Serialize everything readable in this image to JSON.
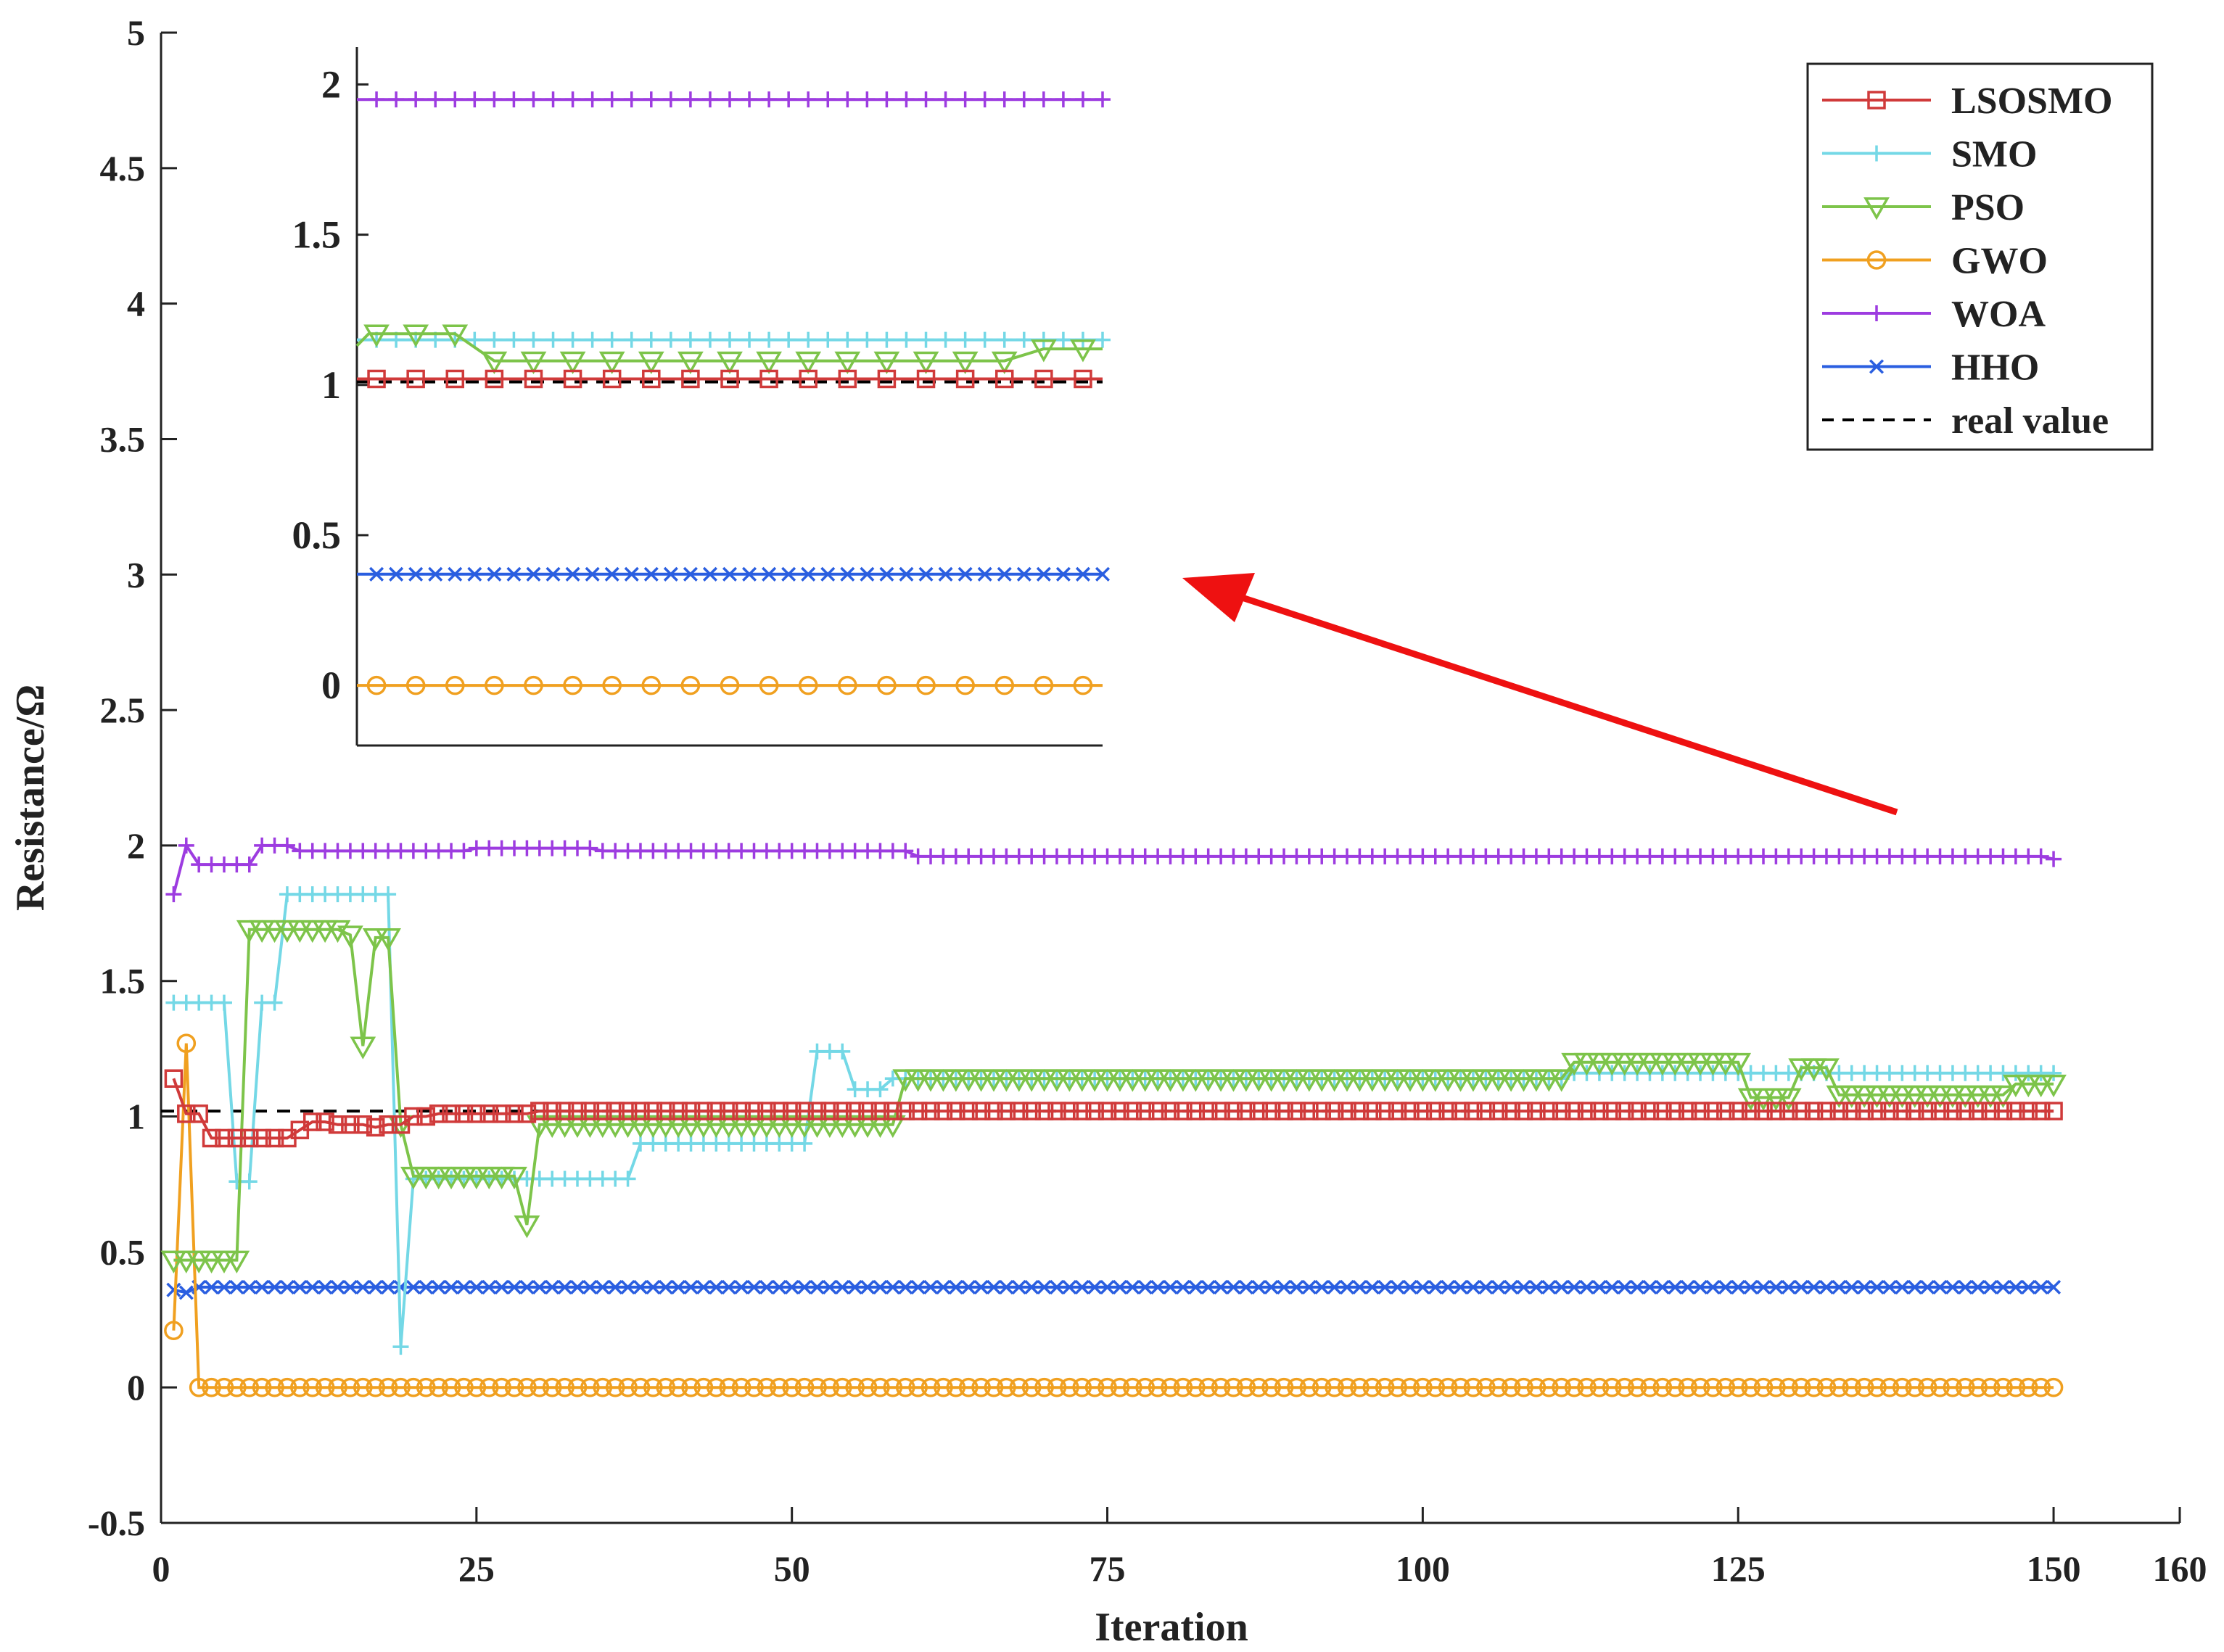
{
  "chart_data": {
    "type": "line",
    "xlabel": "Iteration",
    "ylabel": "Resistance/Ω",
    "xlim": [
      0,
      160
    ],
    "ylim": [
      -0.5,
      5
    ],
    "xticks": [
      "0",
      "25",
      "50",
      "75",
      "100",
      "125",
      "150",
      "160"
    ],
    "yticks": [
      "-0.5",
      "0",
      "0.5",
      "1",
      "1.5",
      "2",
      "2.5",
      "3",
      "3.5",
      "4",
      "4.5",
      "5"
    ],
    "legend_position": "top-right",
    "series": [
      {
        "name": "LSOSMO",
        "color": "#d03a3a",
        "marker": "square",
        "points": [
          [
            1,
            1.14
          ],
          [
            2,
            1.01
          ],
          [
            3,
            1.01
          ],
          [
            4,
            0.92
          ],
          [
            10,
            0.92
          ],
          [
            11,
            0.95
          ],
          [
            12,
            0.98
          ],
          [
            14,
            0.97
          ],
          [
            17,
            0.96
          ],
          [
            18,
            0.97
          ],
          [
            20,
            1.0
          ],
          [
            22,
            1.01
          ],
          [
            30,
            1.02
          ],
          [
            40,
            1.02
          ],
          [
            150,
            1.02
          ]
        ]
      },
      {
        "name": "SMO",
        "color": "#74d8e6",
        "marker": "plus",
        "points": [
          [
            1,
            1.42
          ],
          [
            5,
            1.42
          ],
          [
            6,
            0.76
          ],
          [
            7,
            0.76
          ],
          [
            8,
            1.42
          ],
          [
            9,
            1.42
          ],
          [
            10,
            1.82
          ],
          [
            18,
            1.82
          ],
          [
            19,
            0.15
          ],
          [
            20,
            0.77
          ],
          [
            37,
            0.77
          ],
          [
            38,
            0.9
          ],
          [
            51,
            0.9
          ],
          [
            52,
            1.24
          ],
          [
            54,
            1.24
          ],
          [
            55,
            1.1
          ],
          [
            57,
            1.1
          ],
          [
            58,
            1.14
          ],
          [
            111,
            1.14
          ],
          [
            112,
            1.16
          ],
          [
            150,
            1.16
          ]
        ]
      },
      {
        "name": "PSO",
        "color": "#7dc44a",
        "marker": "triangle-down",
        "points": [
          [
            1,
            0.47
          ],
          [
            6,
            0.47
          ],
          [
            7,
            1.69
          ],
          [
            15,
            1.67
          ],
          [
            16,
            1.26
          ],
          [
            17,
            1.66
          ],
          [
            18,
            1.66
          ],
          [
            19,
            0.97
          ],
          [
            20,
            0.78
          ],
          [
            28,
            0.78
          ],
          [
            29,
            0.6
          ],
          [
            30,
            0.97
          ],
          [
            58,
            0.97
          ],
          [
            59,
            1.14
          ],
          [
            111,
            1.14
          ],
          [
            112,
            1.2
          ],
          [
            125,
            1.2
          ],
          [
            126,
            1.07
          ],
          [
            129,
            1.07
          ],
          [
            130,
            1.18
          ],
          [
            132,
            1.18
          ],
          [
            133,
            1.08
          ],
          [
            146,
            1.08
          ],
          [
            147,
            1.12
          ],
          [
            150,
            1.12
          ]
        ]
      },
      {
        "name": "GWO",
        "color": "#f0a020",
        "marker": "circle",
        "points": [
          [
            1,
            0.21
          ],
          [
            2,
            1.27
          ],
          [
            3,
            0.0
          ],
          [
            150,
            0.0
          ]
        ]
      },
      {
        "name": "WOA",
        "color": "#9d3ce0",
        "marker": "plus",
        "points": [
          [
            1,
            1.82
          ],
          [
            2,
            2.0
          ],
          [
            3,
            1.93
          ],
          [
            7,
            1.93
          ],
          [
            8,
            2.0
          ],
          [
            10,
            2.0
          ],
          [
            11,
            1.98
          ],
          [
            25,
            1.99
          ],
          [
            35,
            1.98
          ],
          [
            60,
            1.96
          ],
          [
            150,
            1.95
          ]
        ]
      },
      {
        "name": "HHO",
        "color": "#2a5ee0",
        "marker": "x",
        "points": [
          [
            1,
            0.36
          ],
          [
            2,
            0.35
          ],
          [
            3,
            0.37
          ],
          [
            150,
            0.37
          ]
        ]
      },
      {
        "name": "real value",
        "color": "#000000",
        "marker": "none",
        "dashed": true,
        "points": [
          [
            0,
            1.02
          ],
          [
            150,
            1.02
          ]
        ]
      }
    ],
    "inset": {
      "yticks": [
        "0",
        "0.5",
        "1",
        "1.5",
        "2"
      ],
      "ylim": [
        -0.2,
        2.1
      ],
      "xlim": [
        0,
        19
      ],
      "series": [
        {
          "name": "LSOSMO",
          "points": [
            [
              0,
              1.02
            ],
            [
              19,
              1.02
            ]
          ]
        },
        {
          "name": "SMO",
          "points": [
            [
              0,
              1.15
            ],
            [
              19,
              1.15
            ]
          ]
        },
        {
          "name": "PSO",
          "points": [
            [
              0,
              1.13
            ],
            [
              0.3,
              1.17
            ],
            [
              2.5,
              1.17
            ],
            [
              3.5,
              1.08
            ],
            [
              16.5,
              1.08
            ],
            [
              17.5,
              1.12
            ],
            [
              19,
              1.12
            ]
          ]
        },
        {
          "name": "GWO",
          "points": [
            [
              0,
              0.0
            ],
            [
              19,
              0.0
            ]
          ]
        },
        {
          "name": "WOA",
          "points": [
            [
              0,
              1.95
            ],
            [
              19,
              1.95
            ]
          ]
        },
        {
          "name": "HHO",
          "points": [
            [
              0,
              0.37
            ],
            [
              19,
              0.37
            ]
          ]
        },
        {
          "name": "real value",
          "points": [
            [
              0,
              1.01
            ],
            [
              19,
              1.01
            ]
          ]
        }
      ]
    }
  }
}
